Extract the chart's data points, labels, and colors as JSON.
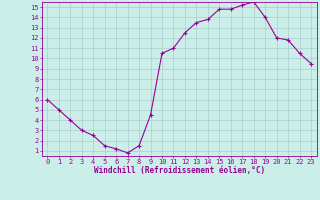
{
  "x": [
    0,
    1,
    2,
    3,
    4,
    5,
    6,
    7,
    8,
    9,
    10,
    11,
    12,
    13,
    14,
    15,
    16,
    17,
    18,
    19,
    20,
    21,
    22,
    23
  ],
  "y": [
    6.0,
    5.0,
    4.0,
    3.0,
    2.5,
    1.5,
    1.2,
    0.8,
    1.5,
    4.5,
    10.5,
    11.0,
    12.5,
    13.5,
    13.8,
    14.8,
    14.8,
    15.2,
    15.5,
    14.0,
    12.0,
    11.8,
    10.5,
    9.5
  ],
  "line_color": "#990099",
  "marker": "+",
  "markersize": 3,
  "linewidth": 0.8,
  "bg_color": "#cceee8",
  "grid_color": "#aacccc",
  "xlabel": "Windchill (Refroidissement éolien,°C)",
  "xlabel_fontsize": 5.5,
  "tick_fontsize": 5,
  "ylim": [
    0.5,
    15.5
  ],
  "yticks": [
    1,
    2,
    3,
    4,
    5,
    6,
    7,
    8,
    9,
    10,
    11,
    12,
    13,
    14,
    15
  ],
  "xticks": [
    0,
    1,
    2,
    3,
    4,
    5,
    6,
    7,
    8,
    9,
    10,
    11,
    12,
    13,
    14,
    15,
    16,
    17,
    18,
    19,
    20,
    21,
    22,
    23
  ],
  "spine_color": "#990099"
}
